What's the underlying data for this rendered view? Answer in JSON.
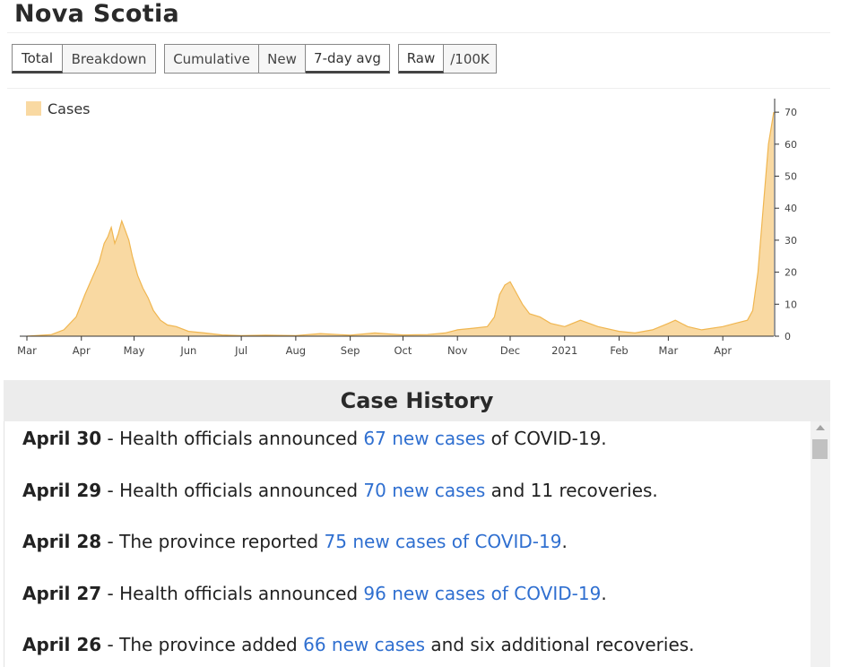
{
  "header": {
    "title": "Nova Scotia"
  },
  "toggles": {
    "view": [
      "Total",
      "Breakdown"
    ],
    "mode": [
      "Cumulative",
      "New",
      "7-day avg"
    ],
    "scale": [
      "Raw",
      "/100K"
    ],
    "active": [
      "Total",
      "7-day avg",
      "Raw"
    ]
  },
  "chart_data": {
    "type": "area",
    "legend": [
      "Cases"
    ],
    "legend_position": "top-left",
    "color": "#f9d9a2",
    "stroke": "#f0b650",
    "ylim": [
      0,
      72
    ],
    "y_ticks": [
      0,
      10,
      20,
      30,
      40,
      50,
      60,
      70
    ],
    "y_axis_side": "right",
    "x_ticks": [
      "Mar",
      "Apr",
      "May",
      "Jun",
      "Jul",
      "Aug",
      "Sep",
      "Oct",
      "Nov",
      "Dec",
      "2021",
      "Feb",
      "Mar",
      "Apr"
    ],
    "series": [
      {
        "name": "Cases",
        "points": [
          [
            "2020-03-01",
            0
          ],
          [
            "2020-03-15",
            0.5
          ],
          [
            "2020-03-22",
            2
          ],
          [
            "2020-03-29",
            6
          ],
          [
            "2020-04-03",
            13
          ],
          [
            "2020-04-07",
            18
          ],
          [
            "2020-04-11",
            23
          ],
          [
            "2020-04-14",
            29
          ],
          [
            "2020-04-16",
            31
          ],
          [
            "2020-04-18",
            34
          ],
          [
            "2020-04-20",
            29
          ],
          [
            "2020-04-22",
            32
          ],
          [
            "2020-04-24",
            36
          ],
          [
            "2020-04-26",
            33
          ],
          [
            "2020-04-28",
            30
          ],
          [
            "2020-04-30",
            25
          ],
          [
            "2020-05-03",
            19
          ],
          [
            "2020-05-06",
            15
          ],
          [
            "2020-05-09",
            12
          ],
          [
            "2020-05-12",
            8
          ],
          [
            "2020-05-16",
            5
          ],
          [
            "2020-05-20",
            3.5
          ],
          [
            "2020-05-25",
            3
          ],
          [
            "2020-06-01",
            1.5
          ],
          [
            "2020-06-10",
            1
          ],
          [
            "2020-06-20",
            0.4
          ],
          [
            "2020-07-01",
            0.2
          ],
          [
            "2020-07-15",
            0.3
          ],
          [
            "2020-08-01",
            0.2
          ],
          [
            "2020-08-15",
            0.8
          ],
          [
            "2020-09-01",
            0.3
          ],
          [
            "2020-09-15",
            1
          ],
          [
            "2020-10-01",
            0.4
          ],
          [
            "2020-10-15",
            0.5
          ],
          [
            "2020-10-25",
            1
          ],
          [
            "2020-11-01",
            2
          ],
          [
            "2020-11-10",
            2.5
          ],
          [
            "2020-11-18",
            3
          ],
          [
            "2020-11-22",
            6
          ],
          [
            "2020-11-25",
            13
          ],
          [
            "2020-11-28",
            16
          ],
          [
            "2020-12-01",
            17
          ],
          [
            "2020-12-04",
            14
          ],
          [
            "2020-12-08",
            10
          ],
          [
            "2020-12-12",
            7
          ],
          [
            "2020-12-18",
            6
          ],
          [
            "2020-12-24",
            4
          ],
          [
            "2021-01-01",
            3
          ],
          [
            "2021-01-10",
            5
          ],
          [
            "2021-01-20",
            3
          ],
          [
            "2021-02-01",
            1.5
          ],
          [
            "2021-02-10",
            1
          ],
          [
            "2021-02-20",
            2
          ],
          [
            "2021-03-01",
            4
          ],
          [
            "2021-03-05",
            5
          ],
          [
            "2021-03-12",
            3
          ],
          [
            "2021-03-20",
            2
          ],
          [
            "2021-04-01",
            3
          ],
          [
            "2021-04-08",
            4
          ],
          [
            "2021-04-15",
            5
          ],
          [
            "2021-04-18",
            8
          ],
          [
            "2021-04-21",
            20
          ],
          [
            "2021-04-24",
            40
          ],
          [
            "2021-04-27",
            60
          ],
          [
            "2021-04-30",
            70
          ]
        ]
      }
    ]
  },
  "history": {
    "title": "Case History",
    "entries": [
      {
        "date": "April 30",
        "pre": " - Health officials announced ",
        "link": "67 new cases",
        "post": " of COVID-19."
      },
      {
        "date": "April 29",
        "pre": " - Health officials announced ",
        "link": "70 new cases",
        "post": " and 11 recoveries."
      },
      {
        "date": "April 28",
        "pre": " - The province reported ",
        "link": "75 new cases of COVID-19",
        "post": "."
      },
      {
        "date": "April 27",
        "pre": " - Health officials announced ",
        "link": "96 new cases of COVID-19",
        "post": "."
      },
      {
        "date": "April 26",
        "pre": " - The province added ",
        "link": "66 new cases",
        "post": " and six additional recoveries."
      }
    ]
  }
}
